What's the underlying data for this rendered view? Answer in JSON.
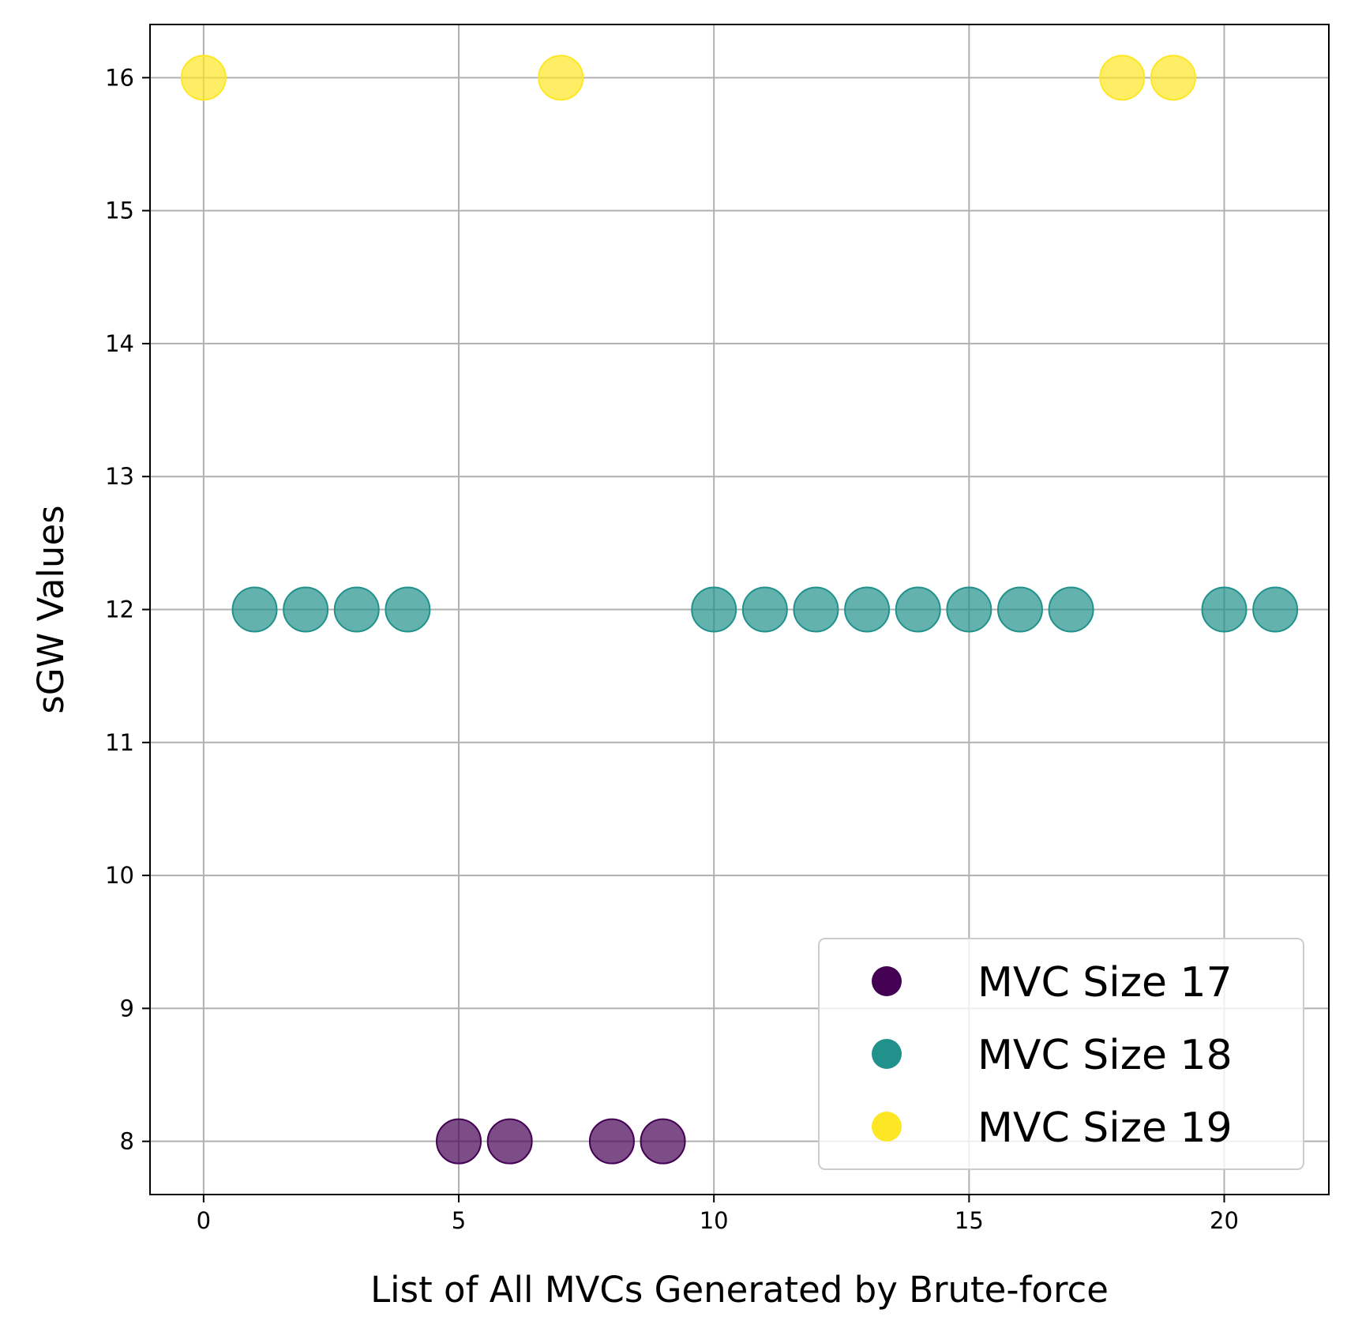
{
  "chart_data": {
    "type": "scatter",
    "xlabel": "List of All MVCs Generated by Brute-force",
    "ylabel": "sGW Values",
    "xlim": [
      -1.05,
      22.05
    ],
    "ylim": [
      7.6,
      16.4
    ],
    "xticks": [
      0,
      5,
      10,
      15,
      20
    ],
    "yticks": [
      8,
      9,
      10,
      11,
      12,
      13,
      14,
      15,
      16
    ],
    "grid": true,
    "legend_position": "lower-right",
    "series": [
      {
        "name": "MVC Size 17",
        "color": "#440154",
        "points": [
          {
            "x": 5,
            "y": 8
          },
          {
            "x": 6,
            "y": 8
          },
          {
            "x": 8,
            "y": 8
          },
          {
            "x": 9,
            "y": 8
          }
        ]
      },
      {
        "name": "MVC Size 18",
        "color": "#21918c",
        "points": [
          {
            "x": 1,
            "y": 12
          },
          {
            "x": 2,
            "y": 12
          },
          {
            "x": 3,
            "y": 12
          },
          {
            "x": 4,
            "y": 12
          },
          {
            "x": 10,
            "y": 12
          },
          {
            "x": 11,
            "y": 12
          },
          {
            "x": 12,
            "y": 12
          },
          {
            "x": 13,
            "y": 12
          },
          {
            "x": 14,
            "y": 12
          },
          {
            "x": 15,
            "y": 12
          },
          {
            "x": 16,
            "y": 12
          },
          {
            "x": 17,
            "y": 12
          },
          {
            "x": 20,
            "y": 12
          },
          {
            "x": 21,
            "y": 12
          }
        ]
      },
      {
        "name": "MVC Size 19",
        "color": "#fde725",
        "points": [
          {
            "x": 0,
            "y": 16
          },
          {
            "x": 7,
            "y": 16
          },
          {
            "x": 18,
            "y": 16
          },
          {
            "x": 19,
            "y": 16
          }
        ]
      }
    ]
  }
}
